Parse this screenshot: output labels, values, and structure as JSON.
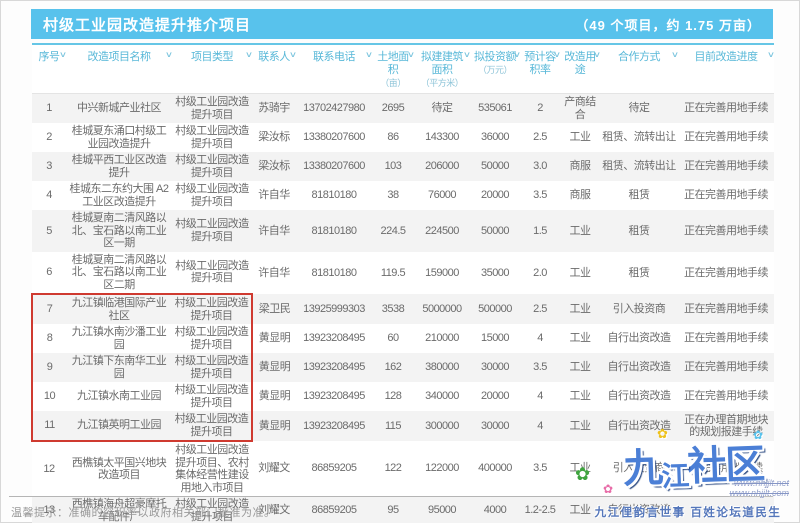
{
  "banner": {
    "title": "村级工业园改造提升推介项目",
    "subtitle": "（49 个项目，约 1.75 万亩）"
  },
  "table": {
    "sort_arrow": "∨",
    "columns": [
      {
        "key": "num",
        "label": "序号",
        "unit": ""
      },
      {
        "key": "name",
        "label": "改造项目名称",
        "unit": ""
      },
      {
        "key": "type",
        "label": "项目类型",
        "unit": ""
      },
      {
        "key": "contact",
        "label": "联系人",
        "unit": ""
      },
      {
        "key": "phone",
        "label": "联系电话",
        "unit": ""
      },
      {
        "key": "land_area",
        "label": "土地面积",
        "unit": "（亩）"
      },
      {
        "key": "build_area",
        "label": "拟建建筑面积",
        "unit": "（平方米）"
      },
      {
        "key": "invest",
        "label": "拟投资额",
        "unit": "（万元）"
      },
      {
        "key": "plot_ratio",
        "label": "预计容积率",
        "unit": ""
      },
      {
        "key": "usage",
        "label": "改造用途",
        "unit": ""
      },
      {
        "key": "coop",
        "label": "合作方式",
        "unit": ""
      },
      {
        "key": "progress",
        "label": "目前改造进度",
        "unit": ""
      }
    ],
    "rows": [
      {
        "num": "1",
        "name": "中兴新城产业社区",
        "type": "村级工业园改造提升项目",
        "contact": "苏骑宇",
        "phone": "13702427980",
        "land_area": "2695",
        "build_area": "待定",
        "invest": "535061",
        "plot_ratio": "2",
        "usage": "产商结合",
        "coop": "待定",
        "progress": "正在完善用地手续"
      },
      {
        "num": "2",
        "name": "桂城夏东涌口村级工业园改造提升",
        "type": "村级工业园改造提升项目",
        "contact": "梁汝标",
        "phone": "13380207600",
        "land_area": "86",
        "build_area": "143300",
        "invest": "36000",
        "plot_ratio": "2.5",
        "usage": "工业",
        "coop": "租赁、流转出让",
        "progress": "正在完善用地手续"
      },
      {
        "num": "3",
        "name": "桂城平西工业区改造提升",
        "type": "村级工业园改造提升项目",
        "contact": "梁汝标",
        "phone": "13380207600",
        "land_area": "103",
        "build_area": "206000",
        "invest": "50000",
        "plot_ratio": "3.0",
        "usage": "商服",
        "coop": "租赁、流转出让",
        "progress": "正在完善用地手续"
      },
      {
        "num": "4",
        "name": "桂城东二东约大围 A2 工业区改造提升",
        "type": "村级工业园改造提升项目",
        "contact": "许自华",
        "phone": "81810180",
        "land_area": "38",
        "build_area": "76000",
        "invest": "20000",
        "plot_ratio": "3.5",
        "usage": "商服",
        "coop": "租赁",
        "progress": "正在完善用地手续"
      },
      {
        "num": "5",
        "name": "桂城夏南二清风路以北、宝石路以南工业区一期",
        "type": "村级工业园改造提升项目",
        "contact": "许自华",
        "phone": "81810180",
        "land_area": "224.5",
        "build_area": "224500",
        "invest": "50000",
        "plot_ratio": "1.5",
        "usage": "工业",
        "coop": "租赁",
        "progress": "正在完善用地手续"
      },
      {
        "num": "6",
        "name": "桂城夏南二清风路以北、宝石路以南工业区二期",
        "type": "村级工业园改造提升项目",
        "contact": "许自华",
        "phone": "81810180",
        "land_area": "119.5",
        "build_area": "159000",
        "invest": "35000",
        "plot_ratio": "2.0",
        "usage": "工业",
        "coop": "租赁",
        "progress": "正在完善用地手续"
      },
      {
        "num": "7",
        "name": "九江镇临港国际产业社区",
        "type": "村级工业园改造提升项目",
        "contact": "梁卫民",
        "phone": "13925999303",
        "land_area": "3538",
        "build_area": "5000000",
        "invest": "500000",
        "plot_ratio": "2.5",
        "usage": "工业",
        "coop": "引入投资商",
        "progress": "正在完善用地手续"
      },
      {
        "num": "8",
        "name": "九江镇水南沙潘工业园",
        "type": "村级工业园改造提升项目",
        "contact": "黄显明",
        "phone": "13923208495",
        "land_area": "60",
        "build_area": "210000",
        "invest": "15000",
        "plot_ratio": "4",
        "usage": "工业",
        "coop": "自行出资改造",
        "progress": "正在完善用地手续"
      },
      {
        "num": "9",
        "name": "九江镇下东南华工业园",
        "type": "村级工业园改造提升项目",
        "contact": "黄显明",
        "phone": "13923208495",
        "land_area": "162",
        "build_area": "380000",
        "invest": "30000",
        "plot_ratio": "3.5",
        "usage": "工业",
        "coop": "自行出资改造",
        "progress": "正在完善用地手续"
      },
      {
        "num": "10",
        "name": "九江镇水南工业园",
        "type": "村级工业园改造提升项目",
        "contact": "黄显明",
        "phone": "13923208495",
        "land_area": "128",
        "build_area": "340000",
        "invest": "20000",
        "plot_ratio": "4",
        "usage": "工业",
        "coop": "自行出资改造",
        "progress": "正在完善用地手续"
      },
      {
        "num": "11",
        "name": "九江镇英明工业园",
        "type": "村级工业园改造提升项目",
        "contact": "黄显明",
        "phone": "13923208495",
        "land_area": "115",
        "build_area": "300000",
        "invest": "30000",
        "plot_ratio": "4",
        "usage": "工业",
        "coop": "自行出资改造",
        "progress": "正在办理首期地块的规划报建手续"
      },
      {
        "num": "12",
        "name": "西樵镇太平国兴地块改造项目",
        "type": "村级工业园改造提升项目、农村集体经营性建设用地入市项目",
        "contact": "刘耀文",
        "phone": "86859205",
        "land_area": "122",
        "build_area": "122000",
        "invest": "400000",
        "plot_ratio": "3.5",
        "usage": "工业",
        "coop": "引入投资商",
        "progress": "已完善用地手续"
      },
      {
        "num": "13",
        "name": "西樵镇海舟超豪摩托车配件厂",
        "type": "村级工业园改造提升项目",
        "contact": "刘耀文",
        "phone": "86859205",
        "land_area": "95",
        "build_area": "95000",
        "invest": "4000",
        "plot_ratio": "1.2-2.5",
        "usage": "工业",
        "coop": "自行出资改造",
        "progress": ""
      }
    ],
    "highlight_box": {
      "first_row": 7,
      "last_row": 11,
      "first_col": 1,
      "last_col": 3
    }
  },
  "footer": {
    "note": "温馨提示：准确的容积率以政府相关部门批准为准。"
  },
  "watermark": {
    "logo_part1": "九",
    "logo_part2": "江",
    "logo_part3": "社区",
    "url_line1": "www.nhjjlt.net",
    "url_line2": "www.nhjjlt.com",
    "tagline": "九江俚韵言世事  百姓论坛道民生",
    "flower": "✿"
  },
  "colors": {
    "banner_blue": "#58c2ec",
    "header_teal": "#58b8d8",
    "highlight_red": "#cf3a30",
    "row_stripe": "#f3f3f3",
    "watermark_blue": "#4b7fd6"
  }
}
